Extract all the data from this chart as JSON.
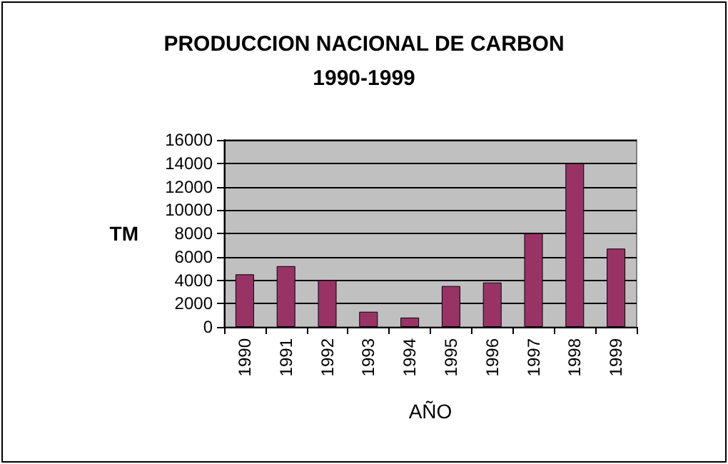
{
  "chart_data": {
    "type": "bar",
    "title": "PRODUCCION NACIONAL DE CARBON\n1990-1999",
    "xlabel": "AÑO",
    "ylabel": "TM",
    "categories": [
      "1990",
      "1991",
      "1992",
      "1993",
      "1994",
      "1995",
      "1996",
      "1997",
      "1998",
      "1999"
    ],
    "values": [
      4500,
      5200,
      4000,
      1300,
      800,
      3500,
      3800,
      8000,
      14000,
      6700
    ],
    "color": "#993366",
    "ylim": [
      0,
      16000
    ],
    "yticks": [
      0,
      2000,
      4000,
      6000,
      8000,
      10000,
      12000,
      14000,
      16000
    ],
    "grid": "y"
  }
}
